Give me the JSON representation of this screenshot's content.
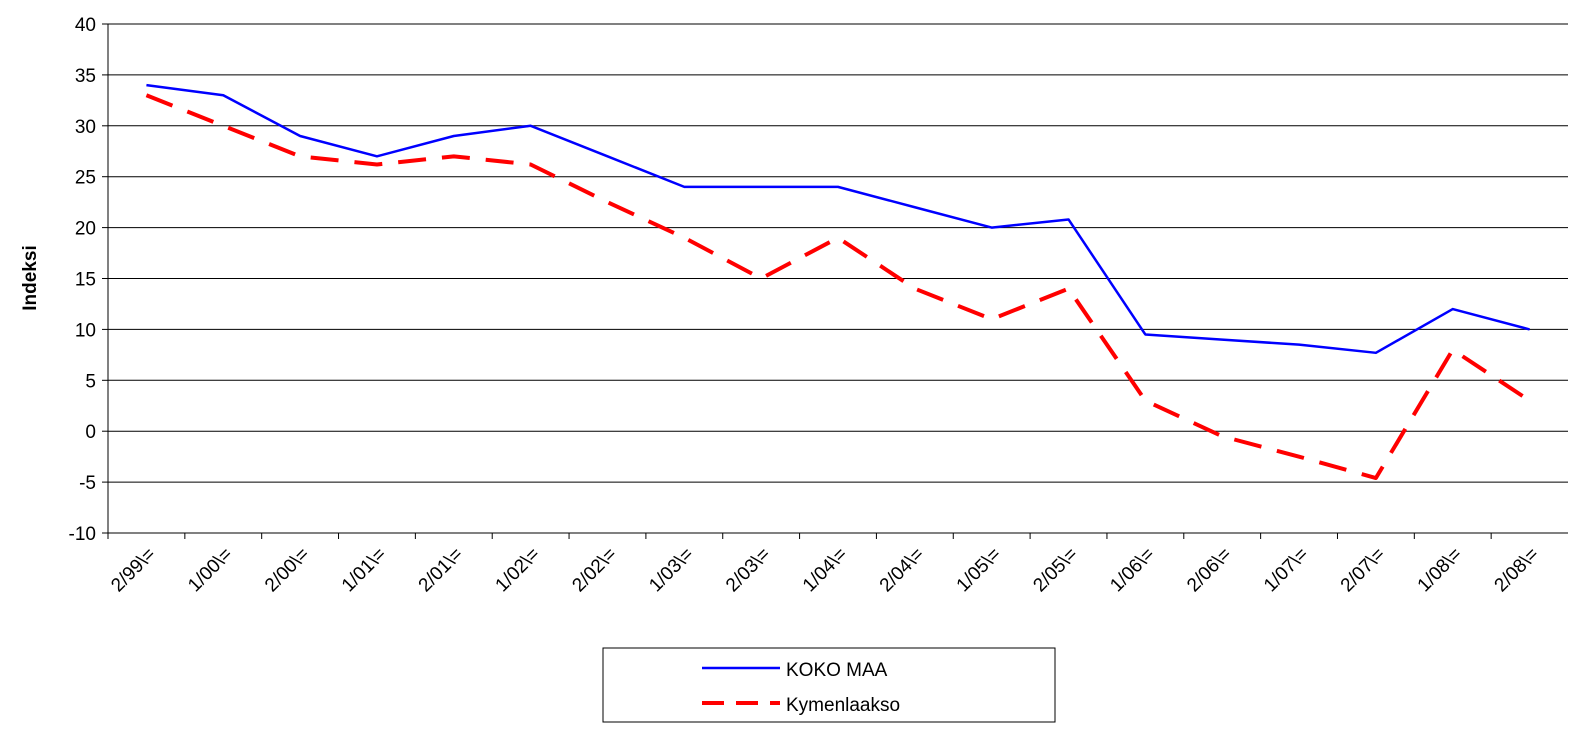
{
  "chart_data": {
    "type": "line",
    "y_label": "Indeksi",
    "categories": [
      "2/99\\=",
      "1/00\\=",
      "2/00\\=",
      "1/01\\=",
      "2/01\\=",
      "1/02\\=",
      "2/02\\=",
      "1/03\\=",
      "2/03\\=",
      "1/04\\=",
      "2/04\\=",
      "1/05\\=",
      "2/05\\=",
      "1/06\\=",
      "2/06\\=",
      "1/07\\=",
      "2/07\\=",
      "1/08\\=",
      "2/08\\="
    ],
    "series": [
      {
        "name": "KOKO MAA",
        "color": "#0000ff",
        "dashed": false,
        "values": [
          34,
          33,
          29,
          27,
          29,
          30,
          27,
          24,
          24,
          24,
          22,
          20,
          20.8,
          9.5,
          9,
          8.5,
          7.7,
          12,
          10
        ]
      },
      {
        "name": "Kymenlaakso",
        "color": "#ff0000",
        "dashed": true,
        "values": [
          33,
          30,
          27,
          26.2,
          27,
          26.2,
          22.5,
          19,
          15,
          19,
          14,
          11,
          14,
          3,
          -0.5,
          -2.5,
          -4.6,
          8,
          3
        ]
      }
    ],
    "ylim": [
      -10,
      40
    ],
    "yticks": [
      -10,
      -5,
      0,
      5,
      10,
      15,
      20,
      25,
      30,
      35,
      40
    ],
    "grid": true,
    "legend": "bottom"
  }
}
